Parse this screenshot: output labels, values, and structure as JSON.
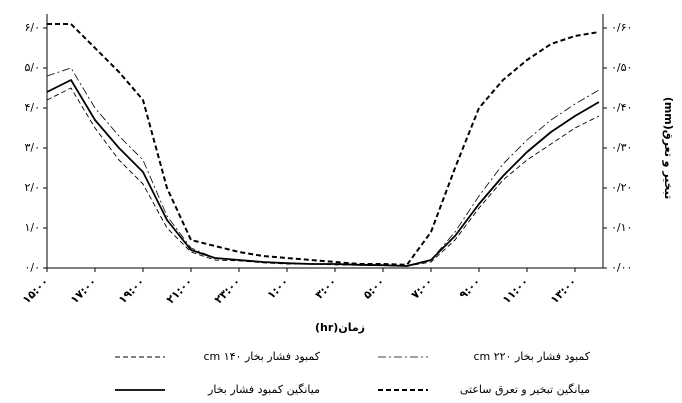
{
  "chart_data": {
    "type": "line",
    "x_label": "زمان(hr)",
    "y2_label": "تبخیر و تعرق(mm)",
    "categories": [
      "۱۵:۰۰",
      null,
      "۱۷:۰۰",
      null,
      "۱۹:۰۰",
      null,
      "۲۱:۰۰",
      null,
      "۲۳:۰۰",
      null,
      "۱:۰۰",
      null,
      "۳:۰۰",
      null,
      "۵:۰۰",
      null,
      "۷:۰۰",
      null,
      "۹:۰۰",
      null,
      "۱۱:۰۰",
      null,
      "۱۳:۰۰",
      null
    ],
    "ylim": [
      0,
      6
    ],
    "yticks": [
      {
        "value": 0,
        "label": "۰/۰"
      },
      {
        "value": 1,
        "label": "۱/۰"
      },
      {
        "value": 2,
        "label": "۲/۰"
      },
      {
        "value": 3,
        "label": "۳/۰"
      },
      {
        "value": 4,
        "label": "۴/۰"
      },
      {
        "value": 5,
        "label": "۵/۰"
      },
      {
        "value": 6,
        "label": "۶/۰"
      }
    ],
    "y2lim": [
      0,
      0.6
    ],
    "y2ticks": [
      {
        "value": 0,
        "label": "۰/۰۰"
      },
      {
        "value": 0.1,
        "label": "۰/۱۰"
      },
      {
        "value": 0.2,
        "label": "۰/۲۰"
      },
      {
        "value": 0.3,
        "label": "۰/۳۰"
      },
      {
        "value": 0.4,
        "label": "۰/۴۰"
      },
      {
        "value": 0.5,
        "label": "۰/۵۰"
      },
      {
        "value": 0.6,
        "label": "۰/۶۰"
      }
    ],
    "grid": false,
    "series": [
      {
        "name": "کمبود فشار بخار ۱۴۰ cm",
        "color": "#000000",
        "dash": "5,3",
        "width": 0.9,
        "values": [
          4.2,
          4.5,
          3.5,
          2.7,
          2.1,
          1.0,
          0.4,
          0.2,
          0.18,
          0.13,
          0.1,
          0.1,
          0.08,
          0.07,
          0.06,
          0.05,
          0.15,
          0.7,
          1.5,
          2.2,
          2.7,
          3.1,
          3.5,
          3.8
        ]
      },
      {
        "name": "کمبود فشار بخار ۲۲۰ cm",
        "color": "#000000",
        "dash": "8,3,2,3",
        "width": 0.8,
        "values": [
          4.8,
          5.0,
          4.0,
          3.3,
          2.7,
          1.3,
          0.5,
          0.25,
          0.2,
          0.15,
          0.12,
          0.1,
          0.1,
          0.08,
          0.07,
          0.05,
          0.2,
          0.9,
          1.8,
          2.6,
          3.2,
          3.7,
          4.1,
          4.45
        ]
      },
      {
        "name": "میانگین کمبود فشار بخار",
        "color": "#000000",
        "dash": "none",
        "width": 1.8,
        "values": [
          4.4,
          4.7,
          3.7,
          3.0,
          2.4,
          1.2,
          0.45,
          0.25,
          0.2,
          0.15,
          0.12,
          0.1,
          0.1,
          0.08,
          0.07,
          0.05,
          0.2,
          0.8,
          1.6,
          2.3,
          2.9,
          3.4,
          3.8,
          4.15
        ]
      },
      {
        "name": "میانگین تبخیر و تعرق ساعتی",
        "color": "#000000",
        "dash": "5,3",
        "width": 2,
        "axis": "y2",
        "values": [
          0.61,
          0.61,
          0.55,
          0.49,
          0.42,
          0.2,
          0.07,
          0.055,
          0.04,
          0.03,
          0.025,
          0.02,
          0.015,
          0.01,
          0.01,
          0.008,
          0.09,
          0.25,
          0.4,
          0.47,
          0.52,
          0.56,
          0.58,
          0.59
        ]
      }
    ]
  }
}
